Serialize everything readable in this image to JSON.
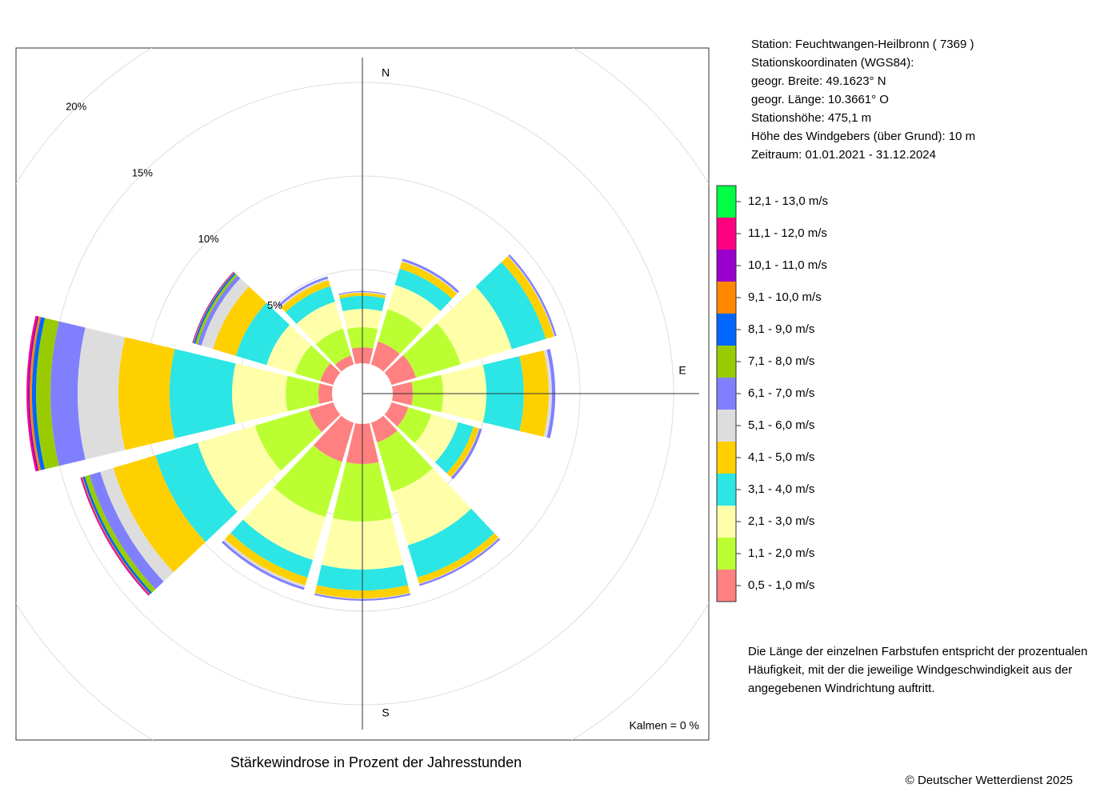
{
  "chart_data": {
    "type": "windrose",
    "title": "Stärkewindrose in Prozent der Jahresstunden",
    "categories": [
      "N",
      null,
      null,
      "E",
      null,
      null,
      "S",
      null,
      null,
      null,
      null,
      null
    ],
    "series": [
      {
        "name": "0,5 - 1,0 m/s",
        "color": "#ff8080",
        "values": [
          0.85,
          1.28,
          1.37,
          1.07,
          0.94,
          1.1,
          2.14,
          2.18,
          1.37,
          0.73,
          0.73,
          0.5
        ]
      },
      {
        "name": "1,1 - 2,0 m/s",
        "color": "#bbff33",
        "values": [
          1.07,
          1.8,
          2.48,
          1.62,
          1.28,
          2.75,
          3.07,
          3.08,
          2.99,
          1.75,
          1.41,
          1.5
        ]
      },
      {
        "name": "2,1 - 3,0 m/s",
        "color": "#ffffaa",
        "values": [
          0.98,
          1.36,
          2.85,
          2.31,
          1.5,
          2.99,
          2.57,
          2.39,
          3.2,
          2.86,
          1.58,
          1.5
        ]
      },
      {
        "name": "3,1 - 4,0 m/s",
        "color": "#2ce5e5",
        "values": [
          0.7,
          0.9,
          1.9,
          2.0,
          0.85,
          1.79,
          1.11,
          0.98,
          2.35,
          3.34,
          1.71,
          0.86
        ]
      },
      {
        "name": "4,1 - 5,0 m/s",
        "color": "#ffd000",
        "values": [
          0.16,
          0.39,
          0.46,
          1.33,
          0.3,
          0.34,
          0.43,
          0.43,
          2.35,
          2.73,
          1.28,
          0.34
        ]
      },
      {
        "name": "5,1 - 6,0 m/s",
        "color": "#dddddd",
        "values": [
          0.04,
          0.05,
          0.04,
          0.17,
          0.03,
          0.03,
          0.03,
          0.13,
          0.73,
          2.18,
          0.64,
          0.09
        ]
      },
      {
        "name": "6,1 - 7,0 m/s",
        "color": "#8080ff",
        "values": [
          0.05,
          0.12,
          0.1,
          0.18,
          0.14,
          0.1,
          0.09,
          0.13,
          0.6,
          1.45,
          0.21,
          0.12
        ]
      },
      {
        "name": "7,1 - 8,0 m/s",
        "color": "#99cc00",
        "values": [
          0,
          0,
          0,
          0,
          0,
          0,
          0,
          0,
          0.26,
          0.77,
          0.13,
          0
        ]
      },
      {
        "name": "8,1 - 9,0 m/s",
        "color": "#0066ff",
        "values": [
          0,
          0,
          0,
          0,
          0,
          0,
          0,
          0,
          0.12,
          0.22,
          0.09,
          0
        ]
      },
      {
        "name": "9,1 - 10,0 m/s",
        "color": "#ff8800",
        "values": [
          0,
          0,
          0,
          0,
          0,
          0,
          0,
          0,
          0.05,
          0.12,
          0.04,
          0
        ]
      },
      {
        "name": "10,1 - 11,0 m/s",
        "color": "#9900cc",
        "values": [
          0,
          0,
          0,
          0,
          0,
          0,
          0,
          0,
          0.04,
          0.09,
          0.04,
          0
        ]
      },
      {
        "name": "11,1 - 12,0 m/s",
        "color": "#ff0080",
        "values": [
          0,
          0,
          0,
          0,
          0,
          0,
          0,
          0,
          0.04,
          0.08,
          0,
          0
        ]
      },
      {
        "name": "12,1 - 13,0 m/s",
        "color": "#00ff44",
        "values": [
          0,
          0,
          0,
          0,
          0,
          0,
          0,
          0,
          0,
          0,
          0,
          0
        ]
      }
    ],
    "rlim": [
      0,
      20
    ],
    "rticks": [
      {
        "value": 5,
        "label": "5%"
      },
      {
        "value": 10,
        "label": "10%"
      },
      {
        "value": 15,
        "label": "15%"
      },
      {
        "value": 20,
        "label": "20%"
      }
    ],
    "grid": true,
    "calm_label": "Kalmen  =  0 %",
    "calm_color": "#228b22"
  },
  "info": [
    "Station:  Feuchtwangen-Heilbronn  ( 7369 )",
    "Stationskoordinaten (WGS84):",
    "geogr. Breite: 49.1623° N",
    "geogr. Länge: 10.3661° O",
    "Stationshöhe: 475,1 m",
    "Höhe des Windgebers (über Grund): 10 m",
    "Zeitraum: 01.01.2021 - 31.12.2024"
  ],
  "note": [
    "Die Länge der einzelnen Farbstufen entspricht der prozentualen",
    "Häufigkeit, mit der die jeweilige Windgeschwindigkeit aus der",
    "angegebenen Windrichtung auftritt."
  ],
  "copyright": "© Deutscher Wetterdienst  2025"
}
